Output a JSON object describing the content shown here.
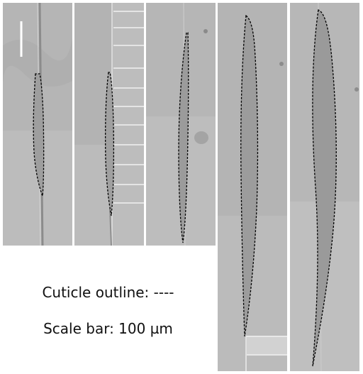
{
  "legend": {
    "outline_text": "Cuticle outline: ----",
    "scale_text": "Scale bar: 100 µm"
  },
  "colors": {
    "background": "#ffffff",
    "micrograph_gray": "#b8b8b8",
    "outline": "#000000",
    "scale_bar": "#ffffff"
  }
}
